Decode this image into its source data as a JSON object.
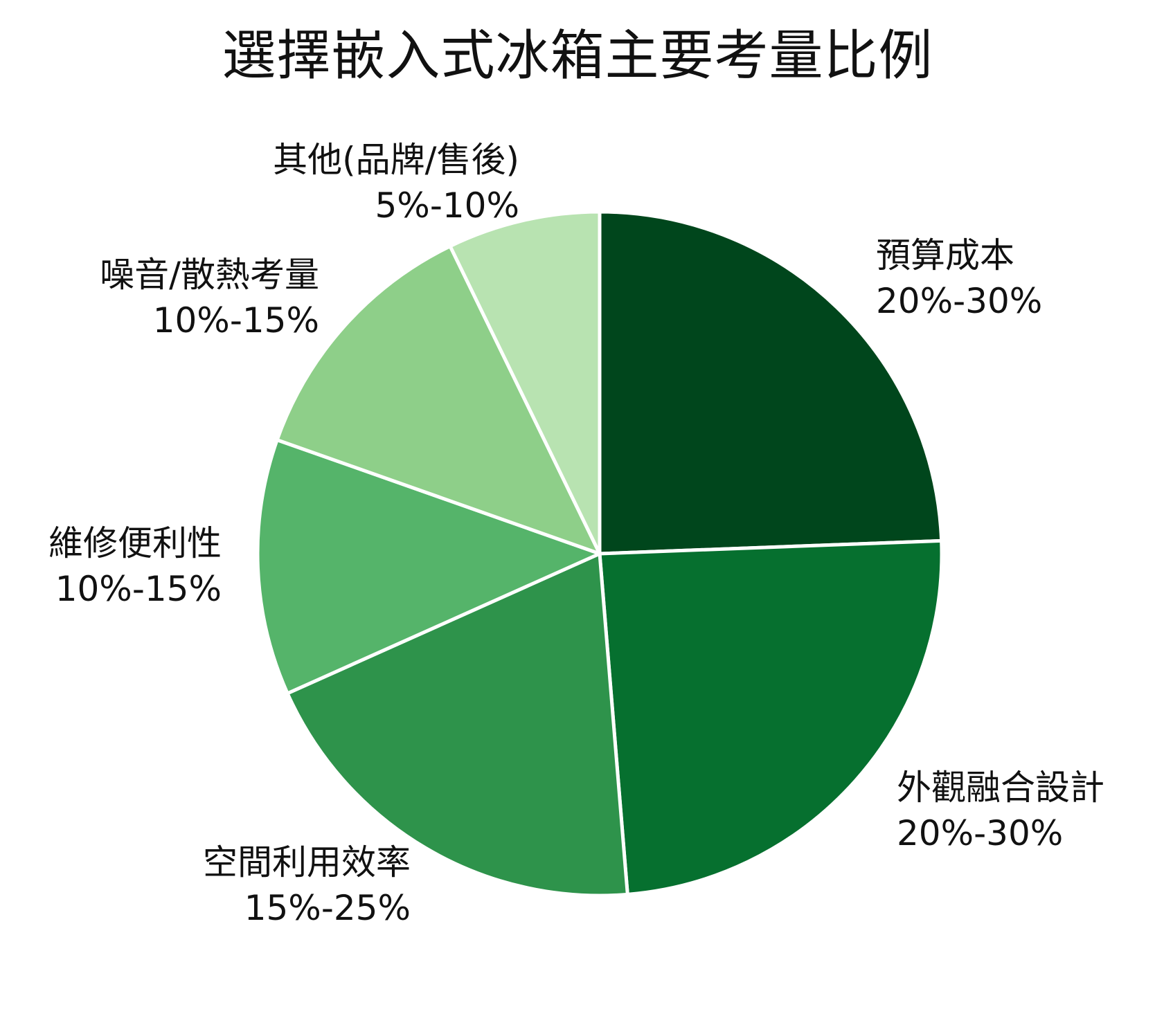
{
  "chart_data": {
    "type": "pie",
    "title": "選擇嵌入式冰箱主要考量比例",
    "start_angle_deg": 0,
    "direction": "clockwise",
    "center": [
      866,
      800
    ],
    "radius": 494,
    "separator_color": "#ffffff",
    "slices": [
      {
        "label": "預算成本",
        "range_text": "20%-30%",
        "value": 24.4,
        "color": "#00461c"
      },
      {
        "label": "外觀融合設計",
        "range_text": "20%-30%",
        "value": 24.3,
        "color": "#06702f"
      },
      {
        "label": "空間利用效率",
        "range_text": "15%-25%",
        "value": 19.6,
        "color": "#2e934b"
      },
      {
        "label": "維修便利性",
        "range_text": "10%-15%",
        "value": 12.1,
        "color": "#55b46a"
      },
      {
        "label": "噪音/散熱考量",
        "range_text": "10%-15%",
        "value": 12.4,
        "color": "#8ecf89"
      },
      {
        "label": "其他(品牌/售後)",
        "range_text": "5%-10%",
        "value": 7.2,
        "color": "#b8e3b1"
      }
    ],
    "legend": "none",
    "labels_outside": true
  },
  "labels": [
    {
      "name": "預算成本",
      "range": "20%-30%"
    },
    {
      "name": "外觀融合設計",
      "range": "20%-30%"
    },
    {
      "name": "空間利用效率",
      "range": "15%-25%"
    },
    {
      "name": "維修便利性",
      "range": "10%-15%"
    },
    {
      "name": "噪音/散熱考量",
      "range": "10%-15%"
    },
    {
      "name": "其他(品牌/售後)",
      "range": "5%-10%"
    }
  ]
}
